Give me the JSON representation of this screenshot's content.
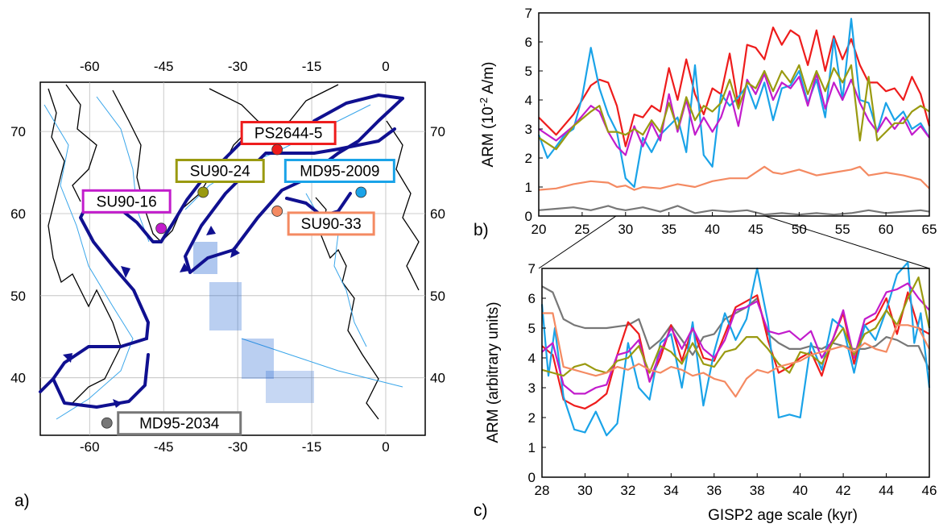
{
  "panel_labels": {
    "a": "a)",
    "b": "b)",
    "c": "c)"
  },
  "colors": {
    "red": "#ee1c1c",
    "cyan": "#1aa3e8",
    "magenta": "#c21ccc",
    "olive": "#9a9a10",
    "orange": "#f48a62",
    "gray": "#777777",
    "current": "#101090"
  },
  "chart_data": [
    {
      "type": "map",
      "panel": "a",
      "x_ticks_top": [
        "-60",
        "-45",
        "-30",
        "-15",
        "0"
      ],
      "x_ticks_bottom": [
        "-60",
        "-45",
        "-30",
        "-15",
        "0"
      ],
      "y_ticks_left": [
        "70",
        "60",
        "50",
        "40"
      ],
      "y_ticks_right": [
        "70",
        "60",
        "50",
        "40"
      ],
      "lon_range": [
        -70,
        8
      ],
      "lat_range": [
        33,
        76
      ],
      "grid": true,
      "sites": [
        {
          "name": "PS2644-5",
          "lon": -22,
          "lat": 67.8,
          "color": "#ee1c1c"
        },
        {
          "name": "SU90-24",
          "lon": -37,
          "lat": 62.6,
          "color": "#9a9a10"
        },
        {
          "name": "MD95-2009",
          "lon": -5,
          "lat": 62.6,
          "color": "#1aa3e8"
        },
        {
          "name": "SU90-16",
          "lon": -45.5,
          "lat": 58.2,
          "color": "#c21ccc"
        },
        {
          "name": "SU90-33",
          "lon": -22,
          "lat": 60.3,
          "color": "#f48a62"
        },
        {
          "name": "MD95-2034",
          "lon": -56.5,
          "lat": 34.5,
          "color": "#777777"
        }
      ]
    },
    {
      "type": "line",
      "panel": "b",
      "xlim": [
        20,
        65
      ],
      "ylim": [
        0,
        7
      ],
      "x_ticks": [
        "20",
        "25",
        "30",
        "35",
        "40",
        "45",
        "50",
        "55",
        "60",
        "65"
      ],
      "y_ticks": [
        "0",
        "1",
        "2",
        "3",
        "4",
        "5",
        "6",
        "7"
      ],
      "ylabel": "ARM (10-2 A/m)",
      "ylabel_base": "ARM (10",
      "ylabel_sup": "-2",
      "ylabel_end": " A/m)",
      "series": [
        {
          "color": "#ee1c1c",
          "x": [
            20,
            22,
            24,
            26,
            27,
            28,
            29,
            30,
            31,
            32,
            33,
            34,
            35,
            36,
            37,
            38,
            39,
            40,
            41,
            42,
            43,
            44,
            45,
            46,
            47,
            48,
            49,
            50,
            51,
            52,
            53,
            54,
            55,
            56,
            57,
            58,
            59,
            60,
            61,
            62,
            63,
            64,
            65
          ],
          "y": [
            3.4,
            2.8,
            3.5,
            4.5,
            4.7,
            4.6,
            3.8,
            2.4,
            3.5,
            3.4,
            3.8,
            3.6,
            5.1,
            4.0,
            5.4,
            4.2,
            3.5,
            4.4,
            4.2,
            5.6,
            3.8,
            5.9,
            5.8,
            5.4,
            6.5,
            5.9,
            6.4,
            6.2,
            5.2,
            6.4,
            5.0,
            6.2,
            5.4,
            6.1,
            5.2,
            4.6,
            4.6,
            4.3,
            4.4,
            4.0,
            4.8,
            4.2,
            3.1
          ]
        },
        {
          "color": "#1aa3e8",
          "x": [
            20,
            21,
            22,
            23,
            24,
            25,
            26,
            27,
            28,
            29,
            30,
            31,
            32,
            33,
            34,
            35,
            36,
            37,
            38,
            39,
            40,
            41,
            42,
            43,
            44,
            45,
            46,
            47,
            48,
            49,
            50,
            51,
            52,
            53,
            54,
            55,
            56,
            57,
            58,
            59,
            60,
            61,
            62,
            63,
            64,
            65
          ],
          "y": [
            2.8,
            2.0,
            2.4,
            2.8,
            3.0,
            4.1,
            5.8,
            4.4,
            3.5,
            2.9,
            1.3,
            1.0,
            2.7,
            2.2,
            2.8,
            3.1,
            3.4,
            2.2,
            5.2,
            2.1,
            1.7,
            4.2,
            3.8,
            4.1,
            4.5,
            3.7,
            4.6,
            3.3,
            4.4,
            4.5,
            5.0,
            3.9,
            4.7,
            3.4,
            6.1,
            4.0,
            6.8,
            4.0,
            3.9,
            2.9,
            3.9,
            3.3,
            3.6,
            3.0,
            3.2,
            2.7
          ]
        },
        {
          "color": "#c21ccc",
          "x": [
            20,
            22,
            24,
            26,
            27,
            28,
            29,
            30,
            31,
            32,
            33,
            34,
            35,
            36,
            37,
            38,
            39,
            40,
            41,
            42,
            43,
            44,
            45,
            46,
            47,
            48,
            49,
            50,
            51,
            52,
            53,
            54,
            55,
            56,
            57,
            58,
            59,
            60,
            61,
            62,
            63,
            64,
            65
          ],
          "y": [
            3.0,
            2.6,
            3.1,
            3.8,
            3.6,
            2.9,
            2.4,
            2.1,
            3.1,
            2.4,
            3.2,
            2.6,
            4.2,
            2.9,
            4.0,
            2.8,
            3.4,
            2.9,
            3.4,
            4.3,
            3.1,
            4.7,
            4.2,
            4.9,
            4.0,
            4.6,
            4.4,
            4.8,
            3.8,
            4.9,
            3.7,
            4.6,
            4.0,
            4.7,
            3.9,
            3.3,
            2.9,
            3.4,
            3.0,
            3.4,
            2.8,
            3.1,
            2.7
          ]
        },
        {
          "color": "#9a9a10",
          "x": [
            20,
            22,
            24,
            26,
            27,
            28,
            29,
            30,
            31,
            32,
            33,
            34,
            35,
            36,
            37,
            38,
            39,
            40,
            41,
            42,
            43,
            44,
            45,
            46,
            47,
            48,
            49,
            50,
            51,
            52,
            53,
            54,
            55,
            56,
            57,
            58,
            59,
            60,
            61,
            62,
            63,
            64,
            65
          ],
          "y": [
            2.7,
            2.3,
            3.1,
            3.6,
            3.8,
            2.9,
            2.9,
            2.8,
            3.0,
            2.8,
            3.3,
            2.9,
            3.9,
            3.0,
            4.1,
            3.3,
            3.8,
            3.6,
            3.9,
            4.7,
            3.7,
            4.6,
            4.4,
            5.0,
            4.3,
            5.0,
            4.6,
            5.2,
            4.2,
            5.0,
            4.3,
            5.1,
            4.6,
            5.2,
            2.6,
            4.8,
            2.6,
            2.9,
            3.2,
            3.2,
            3.6,
            3.8,
            3.6
          ]
        },
        {
          "color": "#f48a62",
          "x": [
            20,
            22,
            24,
            26,
            28,
            29,
            30,
            31,
            32,
            34,
            36,
            38,
            40,
            42,
            44,
            46,
            47,
            48,
            50,
            52,
            54,
            56,
            57,
            58,
            60,
            62,
            64,
            65
          ],
          "y": [
            0.9,
            0.95,
            1.1,
            1.2,
            1.15,
            1.0,
            1.05,
            0.9,
            1.0,
            0.95,
            1.1,
            1.0,
            1.2,
            1.3,
            1.3,
            1.7,
            1.5,
            1.45,
            1.6,
            1.4,
            1.5,
            1.6,
            1.7,
            1.4,
            1.5,
            1.4,
            1.25,
            0.95
          ]
        },
        {
          "color": "#777777",
          "x": [
            20,
            22,
            24,
            26,
            28,
            29,
            30,
            32,
            34,
            36,
            38,
            40,
            42,
            44,
            46,
            48,
            50,
            52,
            54,
            56,
            58,
            60,
            62,
            64,
            65
          ],
          "y": [
            0.2,
            0.25,
            0.3,
            0.2,
            0.35,
            0.25,
            0.2,
            0.3,
            0.15,
            0.35,
            0.1,
            0.2,
            0.15,
            0.2,
            0.05,
            0.1,
            0.05,
            0.1,
            0.05,
            0.1,
            0.2,
            0.1,
            0.15,
            0.2,
            0.15
          ]
        }
      ]
    },
    {
      "type": "line",
      "panel": "c",
      "xlim": [
        28,
        46
      ],
      "ylim": [
        0,
        7
      ],
      "x_ticks": [
        "28",
        "30",
        "32",
        "34",
        "36",
        "38",
        "40",
        "42",
        "44",
        "46"
      ],
      "y_ticks": [
        "0",
        "1",
        "2",
        "3",
        "4",
        "5",
        "6",
        "7"
      ],
      "xlabel": "GISP2 age scale (kyr)",
      "ylabel": "ARM (arbitrary units)",
      "series": [
        {
          "color": "#777777",
          "x": [
            28,
            28.5,
            29,
            29.5,
            30,
            31,
            32,
            32.5,
            33,
            33.5,
            34,
            34.5,
            35,
            35.5,
            36,
            36.5,
            37,
            37.5,
            38,
            38.5,
            39,
            39.5,
            40,
            40.5,
            41,
            41.5,
            42,
            42.5,
            43,
            43.5,
            44,
            44.5,
            45,
            45.5,
            46
          ],
          "y": [
            6.4,
            6.2,
            5.3,
            5.1,
            5.0,
            5.0,
            5.1,
            5.3,
            4.3,
            4.6,
            5.1,
            4.6,
            4.1,
            4.7,
            4.8,
            5.3,
            5.5,
            5.7,
            6.0,
            4.8,
            4.5,
            4.3,
            4.3,
            4.4,
            4.3,
            4.5,
            4.4,
            4.3,
            4.3,
            4.4,
            4.7,
            4.6,
            4.4,
            4.4,
            3.6
          ]
        },
        {
          "color": "#ee1c1c",
          "x": [
            28,
            28.5,
            29,
            29.5,
            30,
            30.5,
            31,
            31.5,
            32,
            32.5,
            33,
            33.5,
            34,
            34.5,
            35,
            35.5,
            36,
            36.5,
            37,
            37.5,
            38,
            38.5,
            39,
            39.5,
            40,
            40.5,
            41,
            41.5,
            42,
            42.5,
            43,
            43.5,
            44,
            44.5,
            45,
            45.5,
            46
          ],
          "y": [
            4.4,
            4.1,
            2.6,
            2.4,
            2.3,
            2.5,
            2.8,
            4.1,
            5.2,
            4.8,
            3.2,
            4.0,
            5.1,
            3.9,
            5.0,
            4.0,
            3.9,
            4.8,
            5.7,
            5.9,
            6.1,
            4.6,
            3.5,
            3.7,
            4.0,
            4.2,
            3.4,
            4.6,
            5.5,
            3.8,
            5.1,
            5.3,
            6.0,
            4.8,
            6.2,
            5.0,
            4.8
          ]
        },
        {
          "color": "#1aa3e8",
          "x": [
            28,
            28.3,
            28.6,
            29,
            29.5,
            30,
            30.5,
            31,
            31.5,
            32,
            32.5,
            33,
            33.5,
            34,
            34.5,
            35,
            35.5,
            36,
            36.5,
            37,
            37.5,
            38,
            38.5,
            39,
            39.5,
            40,
            40.5,
            41,
            41.5,
            42,
            42.5,
            43,
            43.5,
            44,
            44.5,
            45,
            45.3,
            45.6,
            46
          ],
          "y": [
            5.8,
            3.4,
            5.0,
            2.7,
            1.6,
            1.5,
            2.2,
            1.4,
            1.8,
            4.5,
            3.0,
            2.6,
            4.5,
            4.8,
            3.0,
            5.2,
            2.4,
            4.2,
            5.5,
            4.6,
            5.3,
            7.0,
            5.2,
            2.0,
            2.1,
            2.0,
            4.5,
            3.6,
            5.3,
            5.0,
            3.5,
            5.1,
            4.6,
            5.6,
            6.8,
            7.2,
            4.5,
            5.5,
            3.0
          ]
        },
        {
          "color": "#c21ccc",
          "x": [
            28,
            28.5,
            29,
            29.5,
            30,
            30.5,
            31,
            31.5,
            32,
            32.5,
            33,
            33.5,
            34,
            34.5,
            35,
            35.5,
            36,
            36.5,
            37,
            37.5,
            38,
            38.5,
            39,
            39.5,
            40,
            40.5,
            41,
            41.5,
            42,
            42.5,
            43,
            43.5,
            44,
            44.5,
            45,
            45.5,
            46
          ],
          "y": [
            4.2,
            4.5,
            3.1,
            2.8,
            2.8,
            3.0,
            3.1,
            4.1,
            4.2,
            4.6,
            3.2,
            4.2,
            5.0,
            4.3,
            5.0,
            4.3,
            4.0,
            4.6,
            5.6,
            5.7,
            5.9,
            4.9,
            4.8,
            4.9,
            4.6,
            4.9,
            4.0,
            4.6,
            5.6,
            4.0,
            5.3,
            5.5,
            6.2,
            6.3,
            6.5,
            6.0,
            5.6
          ]
        },
        {
          "color": "#9a9a10",
          "x": [
            28,
            28.5,
            29,
            29.5,
            30,
            30.5,
            31,
            31.5,
            32,
            32.5,
            33,
            33.5,
            34,
            34.5,
            35,
            35.5,
            36,
            36.5,
            37,
            37.5,
            38,
            38.5,
            39,
            39.5,
            40,
            40.5,
            41,
            41.5,
            42,
            42.5,
            43,
            43.5,
            44,
            44.5,
            45,
            45.5,
            46
          ],
          "y": [
            3.6,
            3.5,
            3.4,
            3.7,
            3.8,
            3.6,
            3.5,
            3.9,
            4.0,
            4.4,
            3.5,
            4.4,
            4.2,
            3.8,
            4.5,
            3.8,
            3.7,
            4.2,
            4.3,
            4.7,
            4.7,
            4.3,
            3.8,
            3.5,
            4.2,
            4.1,
            3.8,
            4.5,
            5.0,
            4.1,
            4.8,
            5.0,
            5.6,
            5.1,
            6.0,
            6.7,
            5.0
          ]
        },
        {
          "color": "#f48a62",
          "x": [
            28,
            28.5,
            29,
            29.5,
            30,
            30.5,
            31,
            31.5,
            32,
            32.5,
            33,
            33.5,
            34,
            34.5,
            35,
            35.5,
            36,
            36.5,
            37,
            37.5,
            38,
            38.5,
            39,
            39.5,
            40,
            40.5,
            41,
            41.5,
            42,
            42.5,
            43,
            43.5,
            44,
            44.5,
            45,
            45.5,
            46
          ],
          "y": [
            5.5,
            5.5,
            3.7,
            3.6,
            3.5,
            3.4,
            3.5,
            3.7,
            3.6,
            3.8,
            3.6,
            3.5,
            3.7,
            3.6,
            3.4,
            3.5,
            3.3,
            3.2,
            2.7,
            3.3,
            3.6,
            3.5,
            3.7,
            3.8,
            3.9,
            4.1,
            4.2,
            4.3,
            4.4,
            4.2,
            4.5,
            4.3,
            4.2,
            5.1,
            5.1,
            5.0,
            4.3
          ]
        }
      ]
    }
  ]
}
